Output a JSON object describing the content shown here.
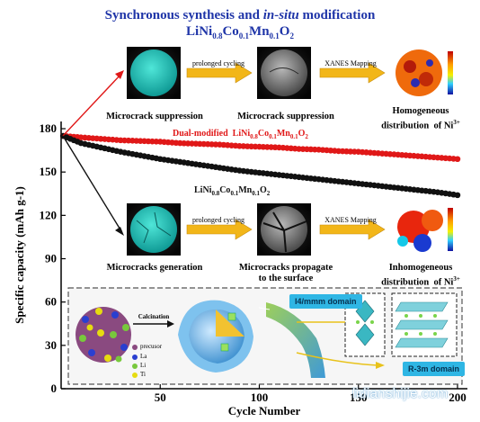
{
  "header": {
    "title_line1_a": "Synchronous synthesis and ",
    "title_line1_b": "in-situ",
    "title_line1_c": " modification",
    "formula": "LiNi0.8Co0.1Mn0.1O2"
  },
  "top_row": {
    "arrow1_label": "prolonged cycling",
    "arrow2_label": "XANES Mapping",
    "caption1": "Microcrack suppression",
    "caption2": "Microcrack suppression",
    "caption3_line1": "Homogeneous",
    "caption3_line2": "distribution  of Ni3+"
  },
  "bottom_row": {
    "arrow1_label": "prolonged cycling",
    "arrow2_label": "XANES Mapping",
    "caption1": "Microcracks generation",
    "caption2_line1": "Microcracks propagate",
    "caption2_line2": "to the surface",
    "caption3_line1": "Inhomogeneous",
    "caption3_line2": "distribution  of Ni3+"
  },
  "inset": {
    "calcination_label": "Calcination",
    "legend": [
      "precusor",
      "La",
      "Li",
      "Ti"
    ],
    "domain1": "I4/mmm domain",
    "domain2": "R-3m domain"
  },
  "colors": {
    "title_blue": "#1f35a8",
    "dual_modified": "#e01818",
    "pristine": "#111111",
    "arrow_gold": "#f2b619",
    "badge_cyan": "#2fb6e4"
  },
  "watermark": "lidianshijie.com",
  "chart_data": {
    "type": "scatter",
    "xlabel": "Cycle Number",
    "ylabel": "Specific capacity (mAh g-1)",
    "xlim": [
      0,
      205
    ],
    "ylim": [
      0,
      185
    ],
    "xticks": [
      50,
      100,
      150,
      200
    ],
    "yticks": [
      0,
      30,
      60,
      90,
      120,
      150,
      180
    ],
    "grid": false,
    "series": [
      {
        "name": "Dual-modified  LiNi0.8Co0.1Mn0.1O2",
        "color": "#e01818",
        "x": [
          1,
          10,
          20,
          30,
          40,
          50,
          60,
          70,
          80,
          90,
          100,
          110,
          120,
          130,
          140,
          150,
          160,
          170,
          180,
          190,
          200
        ],
        "y": [
          175,
          174,
          173,
          172,
          171.5,
          171,
          170,
          169.5,
          169,
          168,
          167.5,
          167,
          166,
          165.5,
          164.5,
          164,
          163,
          162,
          161,
          160,
          159
        ]
      },
      {
        "name": "LiNi0.8Co0.1Mn0.1O2",
        "color": "#111111",
        "x": [
          1,
          10,
          20,
          30,
          40,
          50,
          60,
          70,
          80,
          90,
          100,
          110,
          120,
          130,
          140,
          150,
          160,
          170,
          180,
          190,
          200
        ],
        "y": [
          175,
          170,
          167,
          164,
          161.5,
          159,
          157,
          155,
          153,
          151,
          149.5,
          148,
          146.5,
          145,
          143.5,
          142,
          140.5,
          139,
          137.5,
          136,
          134
        ]
      }
    ]
  }
}
